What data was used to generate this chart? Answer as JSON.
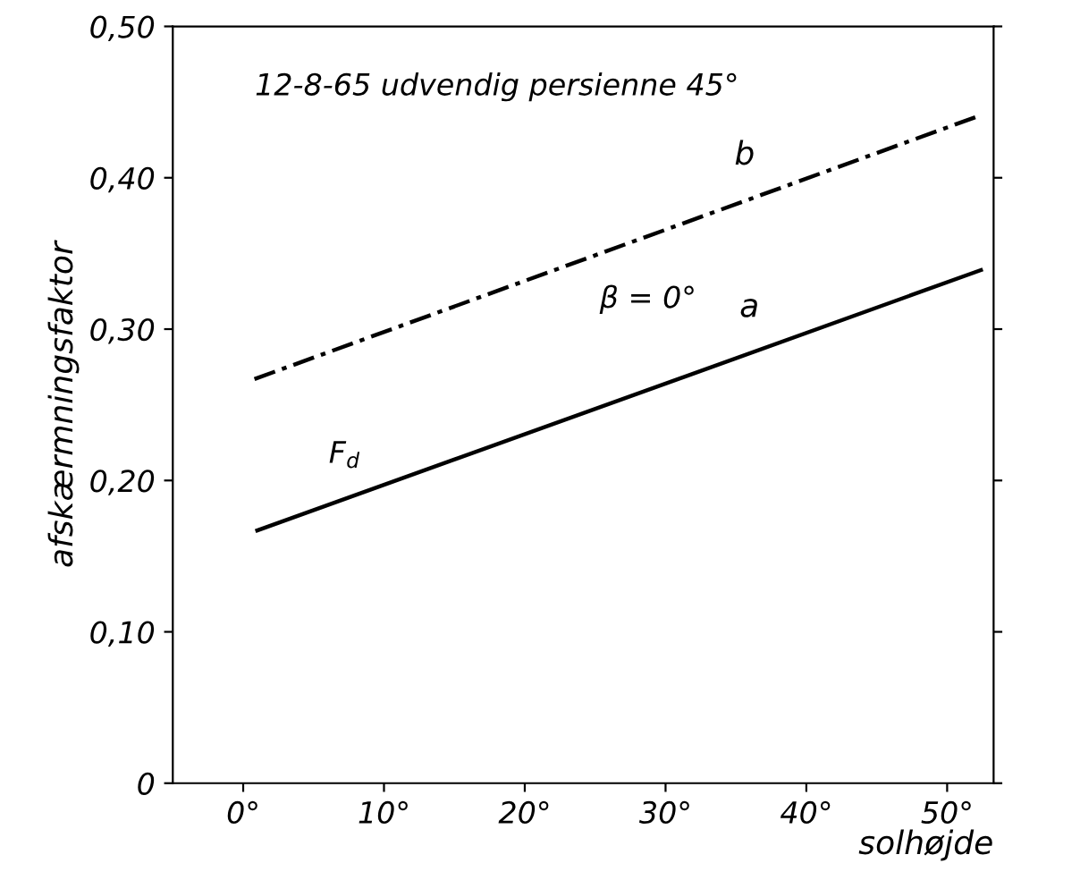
{
  "chart_data": {
    "type": "line",
    "title": "12-8-65 udvendig persienne 45°",
    "xlabel": "solhøjde",
    "ylabel": "afskærmningsfaktor",
    "series": [
      {
        "name": "a",
        "color": "#000000",
        "x": [
          1.0,
          52.4
        ],
        "values": [
          0.167,
          0.339
        ],
        "line_style": "solid"
      },
      {
        "name": "b",
        "color": "#000000",
        "x": [
          0.8,
          52.0
        ],
        "values": [
          0.267,
          0.44
        ],
        "line_style": "dashed"
      }
    ],
    "annotations": [
      "β = 0°",
      "F$_{d}$"
    ],
    "xlim": [
      -5,
      53.3
    ],
    "ylim": [
      0,
      0.5
    ],
    "xticks": [
      {
        "value": 0,
        "label": "0°"
      },
      {
        "value": 10,
        "label": "10°"
      },
      {
        "value": 20,
        "label": "20°"
      },
      {
        "value": 30,
        "label": "30°"
      },
      {
        "value": 40,
        "label": "40°"
      },
      {
        "value": 50,
        "label": "50°"
      }
    ],
    "yticks": [
      {
        "value": 0,
        "label": "0"
      },
      {
        "value": 0.1,
        "label": "0,10"
      },
      {
        "value": 0.2,
        "label": "0,20"
      },
      {
        "value": 0.3,
        "label": "0,30"
      },
      {
        "value": 0.4,
        "label": "0,40"
      },
      {
        "value": 0.5,
        "label": "0,50"
      }
    ],
    "grid": false,
    "legend": false,
    "marker": "none"
  }
}
